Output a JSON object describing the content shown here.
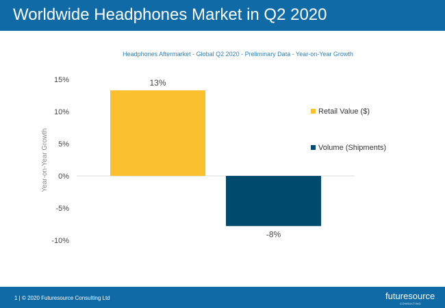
{
  "header": {
    "title": "Worldwide Headphones Market in Q2 2020"
  },
  "chart_data": {
    "type": "bar",
    "title": "Headphones Aftermarket - Global Q2 2020 - Preliminary Data - Year-on-Year Growth",
    "ylabel": "Year-on-Year Growth",
    "xlabel": "",
    "categories": [
      "Retail Value ($)",
      "Volume (Shipments)"
    ],
    "values": [
      13.3,
      -7.8
    ],
    "value_labels": [
      "13%",
      "-8%"
    ],
    "ylim": [
      -10,
      15
    ],
    "yticks": [
      15,
      10,
      5,
      0,
      -5,
      -10
    ],
    "ytick_labels": [
      "15%",
      "10%",
      "5%",
      "0%",
      "-5%",
      "-10%"
    ],
    "colors": [
      "#fbc02d",
      "#004a6e"
    ],
    "legend": {
      "position": "right",
      "entries": [
        {
          "label": "Retail Value ($)",
          "color": "#fbc02d"
        },
        {
          "label": "Volume (Shipments)",
          "color": "#004a6e"
        }
      ]
    },
    "grid": false
  },
  "footer": {
    "text": "1 | © 2020 Futuresource Consulting Ltd",
    "logo": "futuresource",
    "logo_sub": "CONSULTING"
  }
}
